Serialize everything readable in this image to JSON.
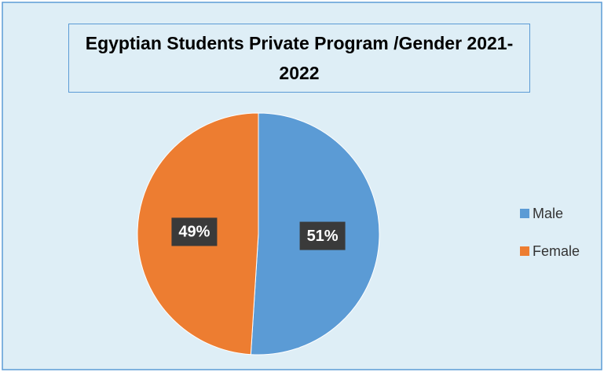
{
  "chart_data": {
    "type": "pie",
    "title": "Egyptian Students Private Program /Gender 2021-2022",
    "categories": [
      "Male",
      "Female"
    ],
    "values": [
      51,
      49
    ],
    "value_labels": [
      "51%",
      "49%"
    ],
    "colors": [
      "#5b9bd5",
      "#ed7d31"
    ],
    "legend": "right"
  }
}
